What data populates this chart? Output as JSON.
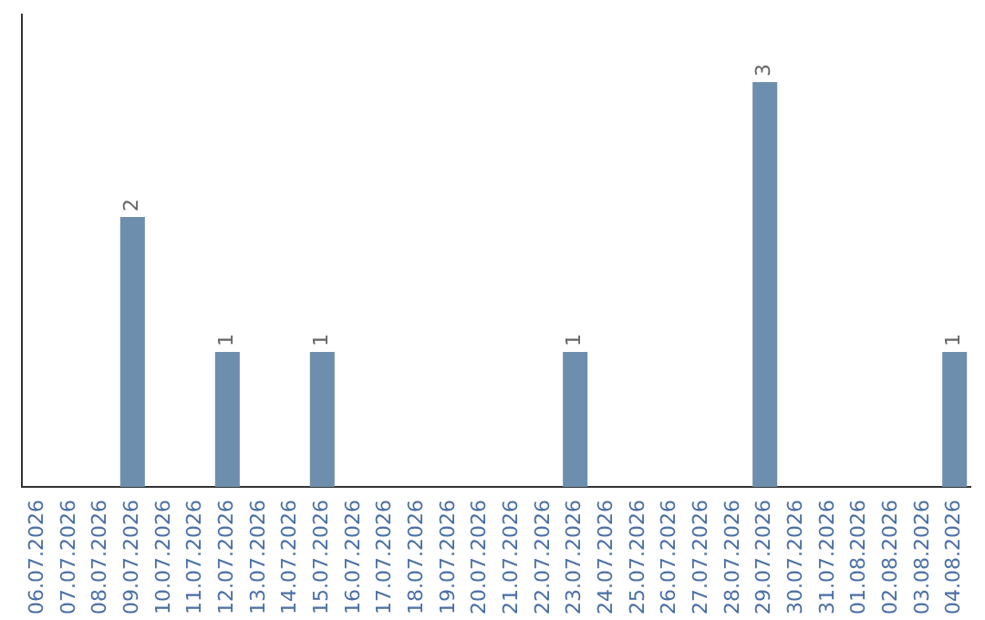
{
  "chart_data": {
    "type": "bar",
    "categories": [
      "06.07.2026",
      "07.07.2026",
      "08.07.2026",
      "09.07.2026",
      "10.07.2026",
      "11.07.2026",
      "12.07.2026",
      "13.07.2026",
      "14.07.2026",
      "15.07.2026",
      "16.07.2026",
      "17.07.2026",
      "18.07.2026",
      "19.07.2026",
      "20.07.2026",
      "21.07.2026",
      "22.07.2026",
      "23.07.2026",
      "24.07.2026",
      "25.07.2026",
      "26.07.2026",
      "27.07.2026",
      "28.07.2026",
      "29.07.2026",
      "30.07.2026",
      "31.07.2026",
      "01.08.2026",
      "02.08.2026",
      "03.08.2026",
      "04.08.2026"
    ],
    "values": [
      0,
      0,
      0,
      2,
      0,
      0,
      1,
      0,
      0,
      1,
      0,
      0,
      0,
      0,
      0,
      0,
      0,
      1,
      0,
      0,
      0,
      0,
      0,
      3,
      0,
      0,
      0,
      0,
      0,
      1
    ],
    "value_labels": [
      null,
      null,
      null,
      "2",
      null,
      null,
      "1",
      null,
      null,
      "1",
      null,
      null,
      null,
      null,
      null,
      null,
      null,
      "1",
      null,
      null,
      null,
      null,
      null,
      "3",
      null,
      null,
      null,
      null,
      null,
      "1"
    ],
    "color": "#6d8fad",
    "tick_labels": "x",
    "grid": false,
    "legend": false
  }
}
